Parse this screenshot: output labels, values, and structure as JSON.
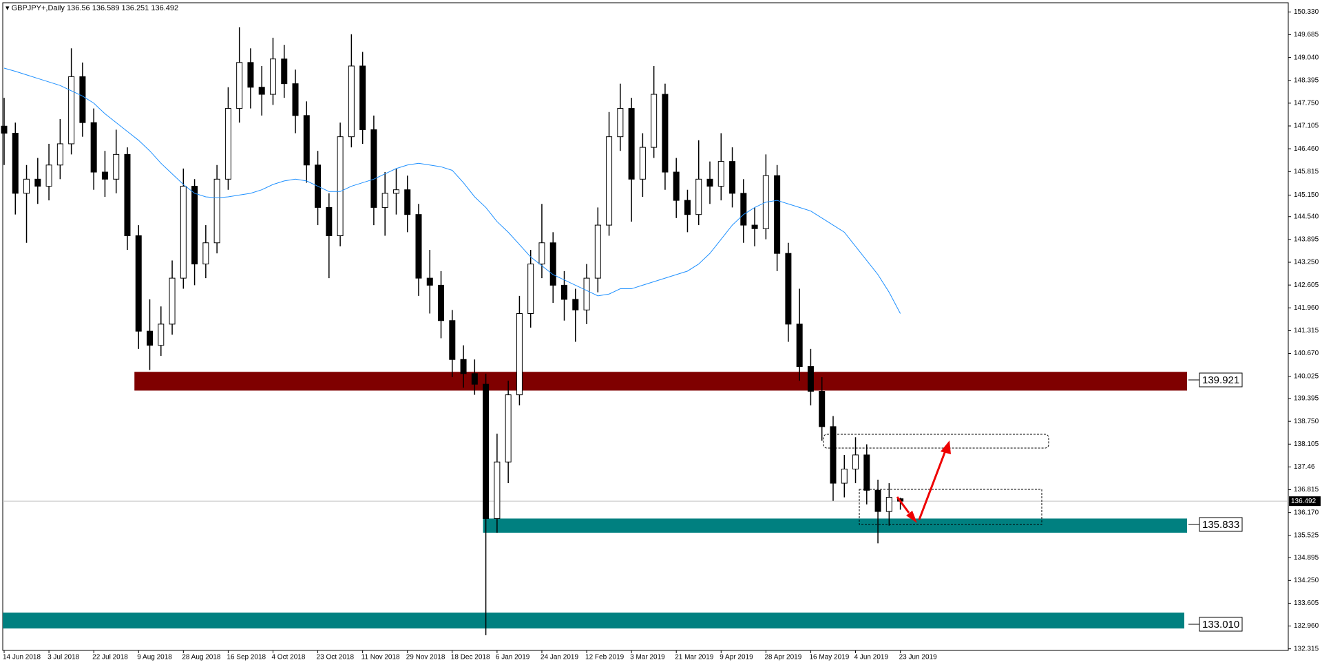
{
  "chart_data": {
    "type": "candlestick",
    "title": "GBPJPY+,Daily",
    "categories": [
      "14 Jun 2018",
      null,
      null,
      null,
      "3 Jul 2018",
      null,
      null,
      null,
      "22 Jul 2018",
      null,
      null,
      null,
      "9 Aug 2018",
      null,
      null,
      null,
      "28 Aug 2018",
      null,
      null,
      null,
      "16 Sep 2018",
      null,
      null,
      null,
      "4 Oct 2018",
      null,
      null,
      null,
      "23 Oct 2018",
      null,
      null,
      null,
      "11 Nov 2018",
      null,
      null,
      null,
      "29 Nov 2018",
      null,
      null,
      null,
      "18 Dec 2018",
      null,
      null,
      null,
      "6 Jan 2019",
      null,
      null,
      null,
      "24 Jan 2019",
      null,
      null,
      null,
      "12 Feb 2019",
      null,
      null,
      null,
      "3 Mar 2019",
      null,
      null,
      null,
      "21 Mar 2019",
      null,
      null,
      null,
      "9 Apr 2019",
      null,
      null,
      null,
      "28 Apr 2019",
      null,
      null,
      null,
      "16 May 2019",
      null,
      null,
      null,
      "4 Jun 2019",
      null,
      null,
      null,
      "23 Jun 2019"
    ],
    "candles": [
      [
        147.1,
        147.9,
        146.0,
        146.9
      ],
      [
        146.9,
        147.2,
        144.6,
        145.2
      ],
      [
        145.2,
        146.0,
        143.8,
        145.6
      ],
      [
        145.6,
        146.2,
        144.9,
        145.4
      ],
      [
        145.4,
        146.6,
        145.0,
        146.0
      ],
      [
        146.0,
        147.3,
        145.6,
        146.6
      ],
      [
        146.6,
        149.3,
        146.3,
        148.5
      ],
      [
        148.5,
        148.9,
        146.8,
        147.2
      ],
      [
        147.2,
        147.6,
        145.3,
        145.8
      ],
      [
        145.8,
        146.4,
        145.1,
        145.6
      ],
      [
        145.6,
        147.0,
        145.2,
        146.3
      ],
      [
        146.3,
        146.5,
        143.6,
        144.0
      ],
      [
        144.0,
        144.3,
        140.8,
        141.3
      ],
      [
        141.3,
        142.2,
        140.2,
        140.9
      ],
      [
        140.9,
        142.0,
        140.6,
        141.5
      ],
      [
        141.5,
        143.3,
        141.2,
        142.8
      ],
      [
        142.8,
        145.9,
        142.5,
        145.4
      ],
      [
        145.4,
        145.6,
        142.6,
        143.2
      ],
      [
        143.2,
        144.3,
        142.8,
        143.8
      ],
      [
        143.8,
        146.0,
        143.5,
        145.6
      ],
      [
        145.6,
        148.2,
        145.3,
        147.6
      ],
      [
        147.6,
        149.9,
        147.2,
        148.9
      ],
      [
        148.9,
        149.3,
        147.6,
        148.2
      ],
      [
        148.2,
        148.8,
        147.4,
        148.0
      ],
      [
        148.0,
        149.6,
        147.7,
        149.0
      ],
      [
        149.0,
        149.4,
        147.9,
        148.3
      ],
      [
        148.3,
        148.7,
        146.9,
        147.4
      ],
      [
        147.4,
        147.8,
        145.5,
        146.0
      ],
      [
        146.0,
        146.4,
        144.3,
        144.8
      ],
      [
        144.8,
        145.2,
        142.8,
        144.0
      ],
      [
        144.0,
        147.2,
        143.7,
        146.8
      ],
      [
        146.8,
        149.7,
        146.5,
        148.8
      ],
      [
        148.8,
        149.2,
        146.6,
        147.0
      ],
      [
        147.0,
        147.4,
        144.3,
        144.8
      ],
      [
        144.8,
        145.8,
        144.0,
        145.2
      ],
      [
        145.2,
        145.9,
        144.6,
        145.3
      ],
      [
        145.3,
        145.7,
        144.1,
        144.6
      ],
      [
        144.6,
        144.9,
        142.3,
        142.8
      ],
      [
        142.8,
        143.6,
        141.8,
        142.6
      ],
      [
        142.6,
        143.0,
        141.1,
        141.6
      ],
      [
        141.6,
        141.9,
        140.0,
        140.5
      ],
      [
        140.5,
        140.9,
        139.7,
        140.1
      ],
      [
        140.1,
        140.5,
        139.5,
        139.8
      ],
      [
        139.8,
        140.1,
        132.7,
        136.0
      ],
      [
        136.0,
        138.4,
        135.6,
        137.6
      ],
      [
        137.6,
        139.9,
        137.0,
        139.5
      ],
      [
        139.5,
        142.3,
        139.2,
        141.8
      ],
      [
        141.8,
        143.6,
        141.4,
        143.2
      ],
      [
        143.2,
        144.9,
        142.8,
        143.8
      ],
      [
        143.8,
        144.1,
        142.1,
        142.6
      ],
      [
        142.6,
        143.0,
        141.6,
        142.2
      ],
      [
        142.2,
        142.5,
        141.0,
        141.9
      ],
      [
        141.9,
        143.2,
        141.5,
        142.8
      ],
      [
        142.8,
        144.8,
        142.4,
        144.3
      ],
      [
        144.3,
        147.5,
        144.0,
        146.8
      ],
      [
        146.8,
        148.3,
        146.4,
        147.6
      ],
      [
        147.6,
        147.9,
        144.4,
        145.6
      ],
      [
        145.6,
        146.9,
        145.1,
        146.5
      ],
      [
        146.5,
        148.8,
        146.2,
        148.0
      ],
      [
        148.0,
        148.3,
        145.3,
        145.8
      ],
      [
        145.8,
        146.2,
        144.5,
        145.0
      ],
      [
        145.0,
        145.3,
        144.1,
        144.6
      ],
      [
        144.6,
        146.7,
        144.3,
        145.6
      ],
      [
        145.6,
        146.1,
        144.9,
        145.4
      ],
      [
        145.4,
        146.9,
        145.0,
        146.1
      ],
      [
        146.1,
        146.5,
        144.8,
        145.2
      ],
      [
        145.2,
        145.6,
        143.8,
        144.3
      ],
      [
        144.3,
        144.8,
        143.7,
        144.2
      ],
      [
        144.2,
        146.3,
        143.9,
        145.7
      ],
      [
        145.7,
        146.0,
        143.0,
        143.5
      ],
      [
        143.5,
        143.8,
        141.0,
        141.5
      ],
      [
        141.5,
        142.5,
        139.9,
        140.3
      ],
      [
        140.3,
        140.8,
        139.2,
        139.6
      ],
      [
        139.6,
        140.0,
        138.2,
        138.6
      ],
      [
        138.6,
        138.9,
        136.5,
        137.0
      ],
      [
        137.0,
        137.8,
        136.6,
        137.4
      ],
      [
        137.4,
        138.3,
        137.0,
        137.8
      ],
      [
        137.8,
        138.1,
        136.4,
        136.8
      ],
      [
        136.8,
        137.1,
        135.3,
        136.2
      ],
      [
        136.2,
        137.0,
        135.8,
        136.6
      ],
      [
        136.56,
        136.589,
        136.251,
        136.492
      ]
    ],
    "ma_values": [
      148.74,
      148.65,
      148.55,
      148.45,
      148.35,
      148.25,
      148.1,
      147.95,
      147.75,
      147.45,
      147.2,
      146.95,
      146.7,
      146.4,
      146.05,
      145.75,
      145.45,
      145.2,
      145.1,
      145.07,
      145.1,
      145.15,
      145.2,
      145.3,
      145.45,
      145.55,
      145.6,
      145.55,
      145.4,
      145.25,
      145.25,
      145.4,
      145.5,
      145.6,
      145.75,
      145.9,
      146.0,
      146.05,
      146.0,
      145.95,
      145.85,
      145.5,
      145.1,
      144.8,
      144.4,
      144.1,
      143.75,
      143.4,
      143.15,
      142.9,
      142.75,
      142.6,
      142.45,
      142.3,
      142.35,
      142.5,
      142.5,
      142.6,
      142.7,
      142.8,
      142.9,
      143.0,
      143.2,
      143.5,
      143.9,
      144.3,
      144.6,
      144.8,
      144.95,
      145.0,
      144.9,
      144.8,
      144.7,
      144.5,
      144.3,
      144.1,
      143.7,
      143.3,
      142.9,
      142.4,
      141.8
    ],
    "ma_color": "#1e90ff",
    "zones": [
      {
        "level": 139.921,
        "top": 140.15,
        "bottom": 139.62,
        "color": "#7f0000"
      },
      {
        "level": 135.833,
        "top": 136.0,
        "bottom": 135.6,
        "color": "#008080"
      },
      {
        "level": {
          "value": 133.01,
          "label": "133.010"
        },
        "top": 133.34,
        "bottom": 132.89,
        "color": "#008080"
      }
    ],
    "ylim": [
      132.27,
      150.59
    ],
    "yticks": [
      {
        "value": 150.33,
        "label": "150.330"
      },
      149.685,
      {
        "value": 149.04,
        "label": "149.040"
      },
      148.395,
      {
        "value": 147.75,
        "label": "147.750"
      },
      147.105,
      {
        "value": 146.46,
        "label": "146.460"
      },
      145.815,
      {
        "value": 145.15,
        "label": "145.150"
      },
      {
        "value": 144.54,
        "label": "144.540"
      },
      143.895,
      {
        "value": 143.25,
        "label": "143.250"
      },
      142.605,
      {
        "value": 141.96,
        "label": "141.960"
      },
      141.315,
      {
        "value": 140.67,
        "label": "140.670"
      },
      140.025,
      139.395,
      {
        "value": 138.75,
        "label": "138.750"
      },
      138.105,
      137.46,
      136.815,
      {
        "value": 136.17,
        "label": "136.170"
      },
      135.525,
      134.895,
      {
        "value": 134.25,
        "label": "134.250"
      },
      133.605,
      {
        "value": 132.96,
        "label": "132.960"
      },
      132.315
    ]
  }
}
